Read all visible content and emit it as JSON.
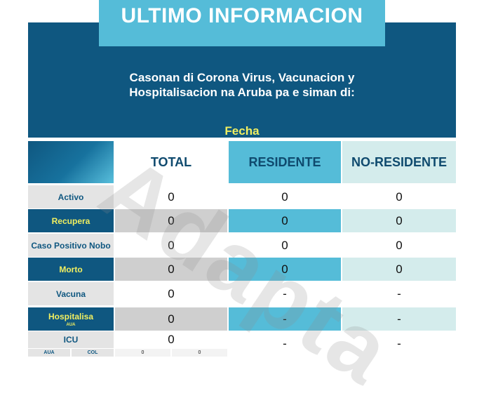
{
  "title": "ULTIMO INFORMACION",
  "header": {
    "line1": "Casonan di Corona Virus, Vacunacion y",
    "line2": "Hospitalisacion na Aruba pa e siman di:",
    "date_label": "Fecha"
  },
  "columns": {
    "total": "TOTAL",
    "residente": "RESIDENTE",
    "no_residente": "NO-RESIDENTE"
  },
  "rows": [
    {
      "label": "Activo",
      "sublabel": "",
      "total": "0",
      "residente": "0",
      "no_residente": "0"
    },
    {
      "label": "Recupera",
      "sublabel": "",
      "total": "0",
      "residente": "0",
      "no_residente": "0"
    },
    {
      "label": "Caso Positivo Nobo",
      "sublabel": "",
      "total": "0",
      "residente": "0",
      "no_residente": "0"
    },
    {
      "label": "Morto",
      "sublabel": "",
      "total": "0",
      "residente": "0",
      "no_residente": "0"
    },
    {
      "label": "Vacuna",
      "sublabel": "",
      "total": "0",
      "residente": "-",
      "no_residente": "-"
    },
    {
      "label": "Hospitalisa",
      "sublabel": "AUA",
      "total": "0",
      "residente": "-",
      "no_residente": "-"
    },
    {
      "label": "ICU",
      "sublabel": "",
      "total": "0",
      "residente": "-",
      "no_residente": "-"
    }
  ],
  "icu_breakdown": {
    "aua_label": "AUA",
    "col_label": "COL",
    "aua_value": "0",
    "col_value": "0"
  },
  "watermark": "Adapta",
  "colors": {
    "navy": "#0f5780",
    "sky": "#55bcd8",
    "mint": "#d4ecec",
    "yellow": "#f1ef60"
  }
}
